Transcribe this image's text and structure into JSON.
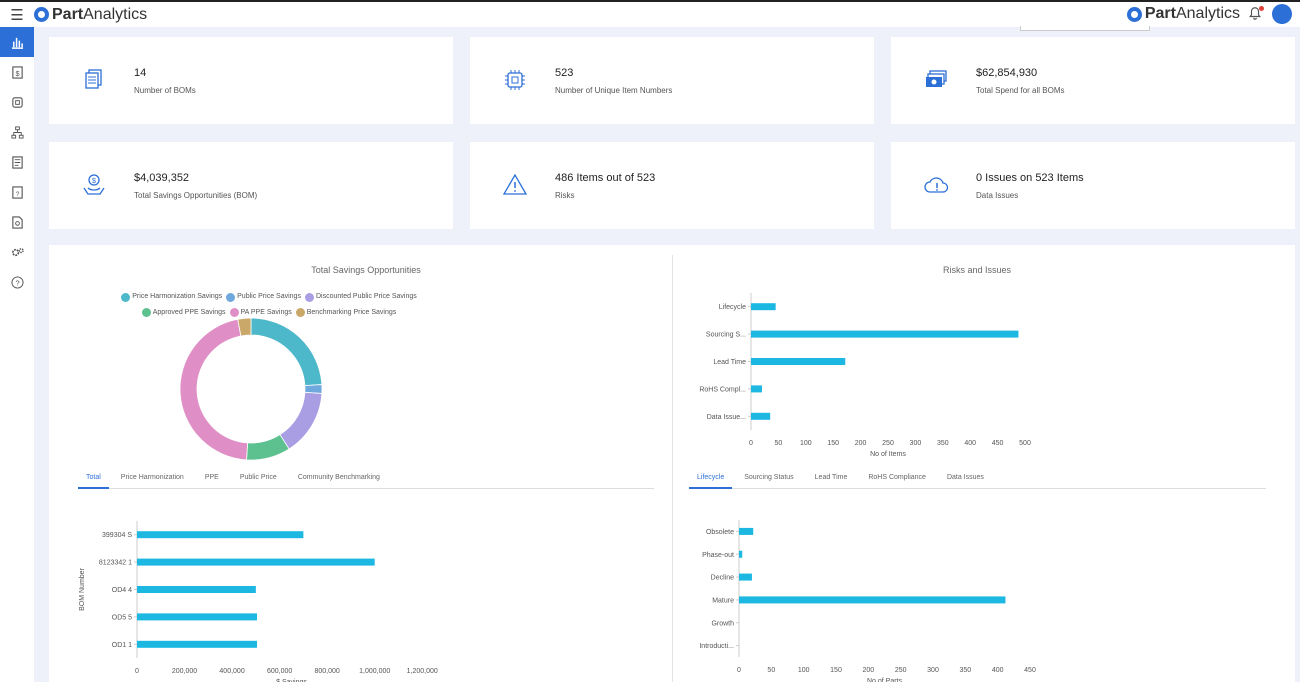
{
  "header": {
    "menu_icon": "hamburger-icon",
    "logo_bold": "Part",
    "logo_rest": "Analytics"
  },
  "sidebar": {
    "items": [
      {
        "icon": "bar-chart-icon",
        "active": true
      },
      {
        "icon": "dollar-document-icon"
      },
      {
        "icon": "chip-icon"
      },
      {
        "icon": "hierarchy-icon"
      },
      {
        "icon": "list-document-icon"
      },
      {
        "icon": "money-document-icon"
      },
      {
        "icon": "search-document-icon"
      },
      {
        "icon": "gears-icon"
      },
      {
        "icon": "help-icon"
      }
    ]
  },
  "cards": [
    {
      "value": "14",
      "label": "Number of BOMs",
      "icon": "documents-icon"
    },
    {
      "value": "523",
      "label": "Number of Unique Item Numbers",
      "icon": "chip-icon"
    },
    {
      "value": "$62,854,930",
      "label": "Total Spend for all BOMs",
      "icon": "money-stack-icon"
    },
    {
      "value": "$4,039,352",
      "label": "Total Savings Opportunities (BOM)",
      "icon": "savings-hand-icon"
    },
    {
      "value": "486 Items out of 523",
      "label": "Risks",
      "icon": "warning-icon"
    },
    {
      "value": " 0  Issues on 523 Items",
      "label": "Data Issues",
      "icon": "cloud-alert-icon"
    }
  ],
  "savings": {
    "title": "Total Savings Opportunities",
    "legend": [
      {
        "name": "Price Harmonization Savings",
        "color": "#4db8c9"
      },
      {
        "name": "Public Price Savings",
        "color": "#6fa8dc"
      },
      {
        "name": "Discounted Public Price Savings",
        "color": "#a99ee3"
      },
      {
        "name": "Approved PPE Savings",
        "color": "#5cc08f"
      },
      {
        "name": "PA PPE Savings",
        "color": "#e08fc6"
      },
      {
        "name": "Benchmarking Price Savings",
        "color": "#c9a86a"
      }
    ],
    "tabs": [
      "Total",
      "Price Harmonization",
      "PPE",
      "Public Price",
      "Community Benchmarking"
    ],
    "active_tab": 0
  },
  "risks": {
    "title": "Risks and Issues",
    "tabs": [
      "Lifecycle",
      "Sourcing Status",
      "Lead Time",
      "RoHS Compliance",
      "Data Issues"
    ],
    "active_tab": 0
  },
  "chart_data": [
    {
      "type": "pie",
      "title": "Total Savings Opportunities",
      "donut": true,
      "categories": [
        "Price Harmonization Savings",
        "Public Price Savings",
        "Discounted Public Price Savings",
        "Approved PPE Savings",
        "PA PPE Savings",
        "Benchmarking Price Savings"
      ],
      "values": [
        24,
        2,
        15,
        10,
        46,
        3
      ],
      "colors": [
        "#4db8c9",
        "#6fa8dc",
        "#a99ee3",
        "#5cc08f",
        "#e08fc6",
        "#c9a86a"
      ]
    },
    {
      "type": "bar",
      "orientation": "horizontal",
      "categories": [
        "Lifecycle",
        "Sourcing S...",
        "Lead Time",
        "RoHS Compl...",
        "Data Issue..."
      ],
      "values": [
        45,
        488,
        172,
        20,
        35
      ],
      "xlabel": "No of Items",
      "xlim": [
        0,
        500
      ],
      "xticks": [
        0,
        50,
        100,
        150,
        200,
        250,
        300,
        350,
        400,
        450,
        500
      ],
      "color": "#1cb8e2"
    },
    {
      "type": "bar",
      "orientation": "horizontal",
      "categories": [
        "399304 S",
        "8123342 1",
        "OD4 4",
        "OD5 5",
        "OD1 1"
      ],
      "values": [
        700000,
        1000000,
        500000,
        505000,
        505000
      ],
      "ylabel": "BOM Number",
      "xlabel": "$ Savings",
      "xlim": [
        0,
        1300000
      ],
      "xticks": [
        "0",
        "200,000",
        "400,000",
        "600,000",
        "800,000",
        "1,000,000",
        "1,200,000"
      ],
      "xtick_values": [
        0,
        200000,
        400000,
        600000,
        800000,
        1000000,
        1200000
      ],
      "color": "#1cb8e2"
    },
    {
      "type": "bar",
      "orientation": "horizontal",
      "categories": [
        "Obsolete",
        "Phase-out",
        "Decline",
        "Mature",
        "Growth",
        "Introducti..."
      ],
      "values": [
        22,
        5,
        20,
        412,
        0,
        0
      ],
      "xlabel": "No of Parts",
      "xlim": [
        0,
        450
      ],
      "xticks": [
        0,
        50,
        100,
        150,
        200,
        250,
        300,
        350,
        400,
        450
      ],
      "color": "#1cb8e2"
    }
  ]
}
